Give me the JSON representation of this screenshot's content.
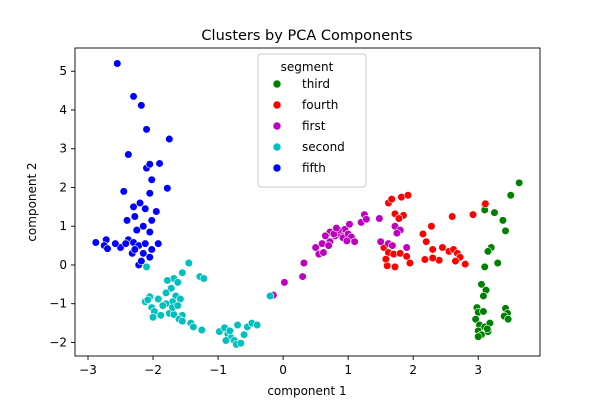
{
  "chart_data": {
    "type": "scatter",
    "title": "Clusters by PCA Components",
    "xlabel": "component 1",
    "ylabel": "component 2",
    "xlim": [
      -3.2,
      3.95
    ],
    "ylim": [
      -2.35,
      5.6
    ],
    "xticks": [
      -3,
      -2,
      -1,
      0,
      1,
      2,
      3
    ],
    "yticks": [
      -2,
      -1,
      0,
      1,
      2,
      3,
      4,
      5
    ],
    "grid": false,
    "legend": {
      "title": "segment",
      "placement": "upper-center"
    },
    "series": [
      {
        "name": "third",
        "color": "#008000",
        "points": [
          [
            3.63,
            2.12
          ],
          [
            3.5,
            1.8
          ],
          [
            3.1,
            1.55
          ],
          [
            3.25,
            1.35
          ],
          [
            3.38,
            1.15
          ],
          [
            3.42,
            0.88
          ],
          [
            3.1,
            1.42
          ],
          [
            3.2,
            0.45
          ],
          [
            3.15,
            0.35
          ],
          [
            3.3,
            0.05
          ],
          [
            3.1,
            -0.05
          ],
          [
            3.05,
            -0.5
          ],
          [
            3.12,
            -0.65
          ],
          [
            3.08,
            -0.8
          ],
          [
            2.98,
            -1.1
          ],
          [
            3.0,
            -1.22
          ],
          [
            2.96,
            -1.4
          ],
          [
            3.02,
            -1.55
          ],
          [
            3.1,
            -1.6
          ],
          [
            3.0,
            -1.7
          ],
          [
            3.05,
            -1.8
          ],
          [
            3.15,
            -1.72
          ],
          [
            3.0,
            -1.85
          ],
          [
            3.18,
            -1.5
          ],
          [
            3.42,
            -1.12
          ],
          [
            3.45,
            -1.25
          ],
          [
            3.4,
            -1.32
          ],
          [
            3.46,
            -1.4
          ],
          [
            3.08,
            -1.2
          ],
          [
            3.14,
            -1.65
          ]
        ]
      },
      {
        "name": "fourth",
        "color": "#ff0000",
        "points": [
          [
            1.62,
            1.6
          ],
          [
            1.67,
            1.7
          ],
          [
            1.82,
            1.75
          ],
          [
            1.92,
            1.8
          ],
          [
            1.72,
            1.32
          ],
          [
            1.85,
            1.28
          ],
          [
            1.78,
            1.2
          ],
          [
            2.6,
            1.25
          ],
          [
            2.92,
            1.3
          ],
          [
            3.11,
            1.58
          ],
          [
            2.28,
            1.0
          ],
          [
            2.15,
            0.8
          ],
          [
            1.55,
            0.45
          ],
          [
            1.62,
            0.32
          ],
          [
            1.7,
            0.28
          ],
          [
            1.8,
            0.3
          ],
          [
            1.9,
            0.22
          ],
          [
            2.2,
            0.6
          ],
          [
            2.3,
            0.4
          ],
          [
            2.45,
            0.45
          ],
          [
            2.55,
            0.35
          ],
          [
            2.62,
            0.4
          ],
          [
            2.68,
            0.3
          ],
          [
            2.72,
            0.2
          ],
          [
            2.65,
            0.1
          ],
          [
            2.4,
            0.12
          ],
          [
            2.3,
            0.18
          ],
          [
            2.18,
            0.14
          ],
          [
            1.6,
            -0.02
          ],
          [
            1.72,
            -0.05
          ],
          [
            1.95,
            0.05
          ],
          [
            2.8,
            0.02
          ],
          [
            1.58,
            0.15
          ]
        ]
      },
      {
        "name": "first",
        "color": "#bf00bf",
        "points": [
          [
            0.02,
            -0.45
          ],
          [
            0.3,
            -0.3
          ],
          [
            -0.15,
            -0.78
          ],
          [
            0.32,
            0.05
          ],
          [
            0.55,
            0.28
          ],
          [
            0.62,
            0.32
          ],
          [
            0.6,
            0.55
          ],
          [
            0.72,
            0.6
          ],
          [
            0.8,
            0.75
          ],
          [
            0.88,
            0.8
          ],
          [
            0.95,
            0.92
          ],
          [
            1.02,
            1.05
          ],
          [
            0.72,
            0.85
          ],
          [
            0.65,
            0.75
          ],
          [
            0.85,
            0.9
          ],
          [
            0.78,
            0.8
          ],
          [
            0.7,
            0.5
          ],
          [
            0.92,
            0.7
          ],
          [
            1.0,
            0.8
          ],
          [
            1.05,
            0.72
          ],
          [
            1.1,
            0.6
          ],
          [
            0.98,
            0.62
          ],
          [
            1.2,
            1.1
          ],
          [
            1.25,
            1.3
          ],
          [
            1.28,
            1.18
          ],
          [
            1.48,
            1.2
          ],
          [
            1.72,
            1.0
          ],
          [
            1.8,
            0.9
          ],
          [
            1.75,
            0.82
          ],
          [
            1.62,
            0.55
          ],
          [
            1.68,
            0.5
          ],
          [
            1.9,
            0.45
          ],
          [
            1.5,
            0.6
          ],
          [
            0.5,
            0.45
          ],
          [
            0.82,
            0.95
          ]
        ]
      },
      {
        "name": "second",
        "color": "#00bfbf",
        "points": [
          [
            -2.1,
            -0.05
          ],
          [
            -1.45,
            0.05
          ],
          [
            -1.55,
            -0.2
          ],
          [
            -1.68,
            -0.35
          ],
          [
            -1.78,
            -0.4
          ],
          [
            -1.62,
            -0.45
          ],
          [
            -1.72,
            -0.6
          ],
          [
            -1.8,
            -0.72
          ],
          [
            -1.65,
            -0.8
          ],
          [
            -1.58,
            -0.88
          ],
          [
            -1.7,
            -0.95
          ],
          [
            -1.8,
            -1.0
          ],
          [
            -1.85,
            -1.05
          ],
          [
            -1.92,
            -0.88
          ],
          [
            -2.05,
            -0.82
          ],
          [
            -2.12,
            -0.95
          ],
          [
            -2.02,
            -1.1
          ],
          [
            -1.98,
            -1.2
          ],
          [
            -2.0,
            -1.35
          ],
          [
            -1.88,
            -1.3
          ],
          [
            -1.75,
            -1.25
          ],
          [
            -1.68,
            -1.28
          ],
          [
            -1.55,
            -1.3
          ],
          [
            -1.6,
            -1.4
          ],
          [
            -1.55,
            -1.45
          ],
          [
            -1.42,
            -1.5
          ],
          [
            -1.38,
            -1.6
          ],
          [
            -1.25,
            -1.68
          ],
          [
            -1.28,
            -0.3
          ],
          [
            -1.22,
            -0.35
          ],
          [
            -0.98,
            -1.72
          ],
          [
            -0.9,
            -1.62
          ],
          [
            -0.85,
            -1.78
          ],
          [
            -0.8,
            -1.88
          ],
          [
            -0.75,
            -1.95
          ],
          [
            -0.72,
            -2.05
          ],
          [
            -0.65,
            -2.02
          ],
          [
            -0.6,
            -1.8
          ],
          [
            -0.55,
            -1.6
          ],
          [
            -0.48,
            -1.5
          ],
          [
            -0.7,
            -1.55
          ],
          [
            -0.82,
            -1.7
          ],
          [
            -0.88,
            -1.95
          ],
          [
            -0.4,
            -1.55
          ],
          [
            -0.2,
            -0.8
          ],
          [
            -1.7,
            -1.1
          ],
          [
            -1.62,
            -1.05
          ],
          [
            -2.08,
            -0.9
          ]
        ]
      },
      {
        "name": "fifth",
        "color": "#0000ff",
        "points": [
          [
            -2.55,
            5.2
          ],
          [
            -2.3,
            4.35
          ],
          [
            -2.18,
            4.12
          ],
          [
            -2.1,
            3.5
          ],
          [
            -1.75,
            3.25
          ],
          [
            -2.45,
            1.9
          ],
          [
            -2.38,
            2.85
          ],
          [
            -2.1,
            2.5
          ],
          [
            -2.05,
            2.6
          ],
          [
            -1.9,
            2.62
          ],
          [
            -2.02,
            2.2
          ],
          [
            -1.78,
            1.98
          ],
          [
            -2.05,
            1.85
          ],
          [
            -2.2,
            1.6
          ],
          [
            -2.3,
            1.5
          ],
          [
            -2.12,
            1.45
          ],
          [
            -1.95,
            1.38
          ],
          [
            -2.28,
            1.25
          ],
          [
            -2.4,
            1.15
          ],
          [
            -2.02,
            1.15
          ],
          [
            -2.15,
            1.0
          ],
          [
            -2.25,
            0.9
          ],
          [
            -2.05,
            0.85
          ],
          [
            -2.38,
            0.65
          ],
          [
            -2.3,
            0.58
          ],
          [
            -2.22,
            0.5
          ],
          [
            -2.12,
            0.55
          ],
          [
            -2.02,
            0.4
          ],
          [
            -1.92,
            0.55
          ],
          [
            -2.15,
            0.3
          ],
          [
            -2.32,
            0.3
          ],
          [
            -2.5,
            0.45
          ],
          [
            -2.58,
            0.55
          ],
          [
            -2.72,
            0.65
          ],
          [
            -2.75,
            0.5
          ],
          [
            -2.7,
            0.42
          ],
          [
            -2.88,
            0.58
          ],
          [
            -2.22,
            0.0
          ],
          [
            -2.18,
            0.1
          ],
          [
            -2.05,
            0.2
          ],
          [
            -2.42,
            0.55
          ],
          [
            -2.28,
            0.4
          ]
        ]
      }
    ]
  }
}
